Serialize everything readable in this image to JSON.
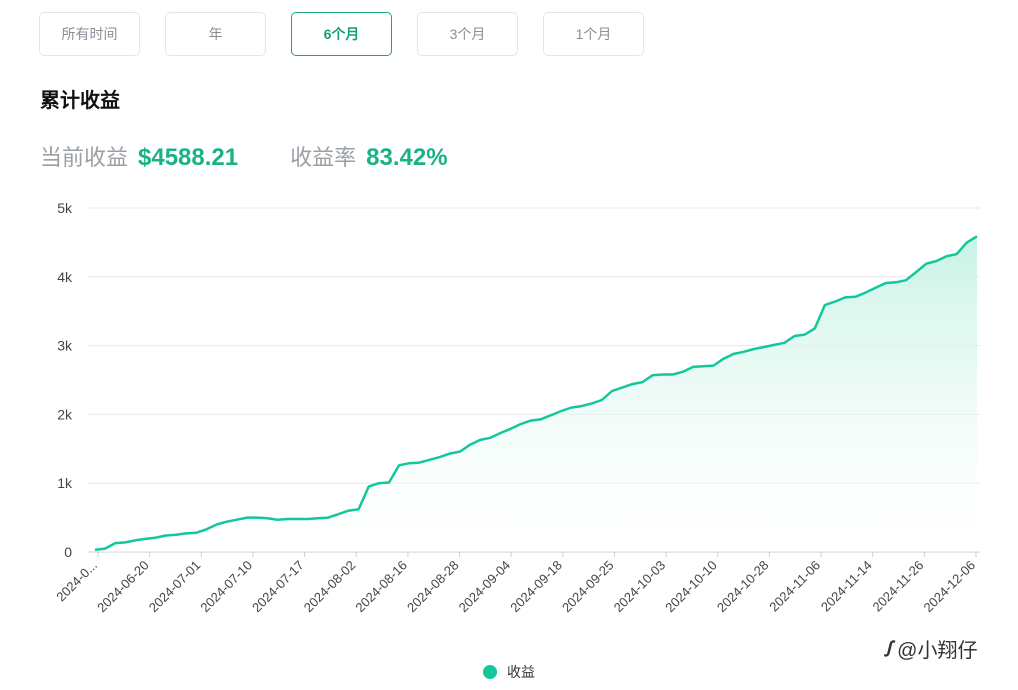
{
  "tabs": [
    {
      "label": "所有时间",
      "active": false
    },
    {
      "label": "年",
      "active": false
    },
    {
      "label": "6个月",
      "active": true
    },
    {
      "label": "3个月",
      "active": false
    },
    {
      "label": "1个月",
      "active": false
    }
  ],
  "section_title": "累计收益",
  "stats": {
    "current_label": "当前收益",
    "current_value": "$4588.21",
    "rate_label": "收益率",
    "rate_value": "83.42%"
  },
  "watermark": {
    "logo": "ꭍ",
    "text": "@小翔仔"
  },
  "colors": {
    "accent": "#19b287",
    "line": "#13c79c",
    "fill_top": "#c6f2e4",
    "grid": "#e8e8e8"
  },
  "chart_data": {
    "type": "area",
    "title": "",
    "xlabel": "",
    "ylabel": "",
    "ylim": [
      0,
      5000
    ],
    "y_ticks": [
      0,
      1000,
      2000,
      3000,
      4000,
      5000
    ],
    "y_tick_labels": [
      "0",
      "1k",
      "2k",
      "3k",
      "4k",
      "5k"
    ],
    "x_tick_labels": [
      "2024-0...",
      "2024-06-20",
      "2024-07-01",
      "2024-07-10",
      "2024-07-17",
      "2024-08-02",
      "2024-08-16",
      "2024-08-28",
      "2024-09-04",
      "2024-09-18",
      "2024-09-25",
      "2024-10-03",
      "2024-10-10",
      "2024-10-28",
      "2024-11-06",
      "2024-11-14",
      "2024-11-26",
      "2024-12-06"
    ],
    "grid": true,
    "legend": "bottom-center",
    "series": [
      {
        "name": "收益",
        "values": [
          30,
          50,
          130,
          140,
          170,
          190,
          210,
          240,
          250,
          270,
          280,
          330,
          400,
          440,
          470,
          500,
          500,
          490,
          470,
          480,
          480,
          480,
          490,
          500,
          550,
          600,
          620,
          950,
          1000,
          1010,
          1260,
          1290,
          1300,
          1340,
          1380,
          1430,
          1460,
          1560,
          1630,
          1660,
          1730,
          1790,
          1860,
          1910,
          1930,
          1990,
          2050,
          2100,
          2120,
          2160,
          2210,
          2340,
          2390,
          2440,
          2470,
          2570,
          2580,
          2580,
          2620,
          2690,
          2700,
          2710,
          2810,
          2880,
          2910,
          2950,
          2980,
          3010,
          3040,
          3140,
          3160,
          3250,
          3590,
          3640,
          3700,
          3710,
          3770,
          3840,
          3910,
          3920,
          3950,
          4070,
          4190,
          4230,
          4300,
          4330,
          4500,
          4588
        ]
      }
    ]
  }
}
